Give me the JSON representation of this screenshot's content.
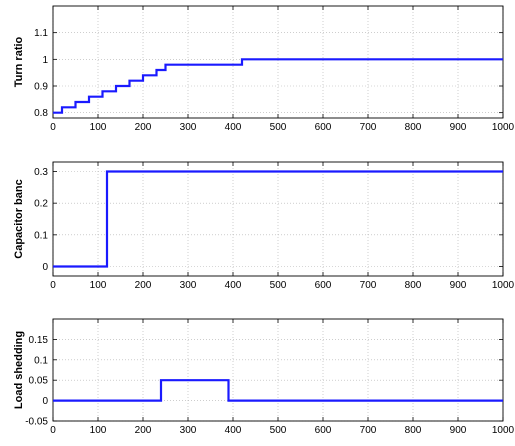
{
  "chart_data": [
    {
      "type": "line",
      "ylabel": "Turn ratio",
      "xlim": [
        0,
        1000
      ],
      "ylim": [
        0.78,
        1.2
      ],
      "xticks": [
        0,
        100,
        200,
        300,
        400,
        500,
        600,
        700,
        800,
        900,
        1000
      ],
      "yticks": [
        0.8,
        0.9,
        1,
        1.1
      ],
      "ytick_labels": [
        "0.8",
        "0.9",
        "1",
        "1.1"
      ],
      "grid": true,
      "line_color": "#1a1aff",
      "series": [
        {
          "x": [
            0,
            20,
            20,
            50,
            50,
            80,
            80,
            110,
            110,
            140,
            140,
            170,
            170,
            200,
            200,
            230,
            230,
            250,
            250,
            270,
            270,
            420,
            420,
            1000
          ],
          "y": [
            0.8,
            0.8,
            0.82,
            0.82,
            0.84,
            0.84,
            0.86,
            0.86,
            0.88,
            0.88,
            0.9,
            0.9,
            0.92,
            0.92,
            0.94,
            0.94,
            0.96,
            0.96,
            0.98,
            0.98,
            0.98,
            0.98,
            1.0,
            1.0
          ]
        }
      ]
    },
    {
      "type": "line",
      "ylabel": "Capacitor banc",
      "xlim": [
        0,
        1000
      ],
      "ylim": [
        -0.03,
        0.33
      ],
      "xticks": [
        0,
        100,
        200,
        300,
        400,
        500,
        600,
        700,
        800,
        900,
        1000
      ],
      "yticks": [
        0,
        0.1,
        0.2,
        0.3
      ],
      "ytick_labels": [
        "0",
        "0.1",
        "0.2",
        "0.3"
      ],
      "grid": true,
      "line_color": "#1a1aff",
      "series": [
        {
          "x": [
            0,
            120,
            120,
            1000
          ],
          "y": [
            0,
            0,
            0.3,
            0.3
          ]
        }
      ]
    },
    {
      "type": "line",
      "ylabel": "Load shedding",
      "xlim": [
        0,
        1000
      ],
      "ylim": [
        -0.05,
        0.2
      ],
      "xticks": [
        0,
        100,
        200,
        300,
        400,
        500,
        600,
        700,
        800,
        900,
        1000
      ],
      "yticks": [
        -0.05,
        0,
        0.05,
        0.1,
        0.15
      ],
      "ytick_labels": [
        "-0.05",
        "0",
        "0.05",
        "0.1",
        "0.15"
      ],
      "grid": true,
      "line_color": "#1a1aff",
      "series": [
        {
          "x": [
            0,
            240,
            240,
            390,
            390,
            1000
          ],
          "y": [
            0,
            0,
            0.05,
            0.05,
            0,
            0
          ]
        }
      ]
    }
  ]
}
